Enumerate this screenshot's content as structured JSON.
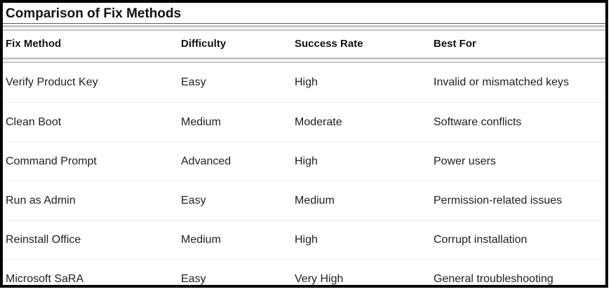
{
  "title": "Comparison of Fix Methods",
  "table": {
    "columns": [
      "Fix Method",
      "Difficulty",
      "Success Rate",
      "Best For"
    ],
    "rows": [
      [
        "Verify Product Key",
        "Easy",
        "High",
        "Invalid or mismatched keys"
      ],
      [
        "Clean Boot",
        "Medium",
        "Moderate",
        "Software conflicts"
      ],
      [
        "Command Prompt",
        "Advanced",
        "High",
        "Power users"
      ],
      [
        "Run as Admin",
        "Easy",
        "Medium",
        "Permission-related issues"
      ],
      [
        "Reinstall Office",
        "Medium",
        "High",
        "Corrupt installation"
      ],
      [
        "Microsoft SaRA",
        "Easy",
        "Very High",
        "General troubleshooting"
      ]
    ]
  },
  "colors": {
    "frame_border": "#000000",
    "title_underline": "#595959",
    "double_rule": "#c6c6c6",
    "row_divider": "#ebebeb",
    "text": "#1f1f1f"
  }
}
